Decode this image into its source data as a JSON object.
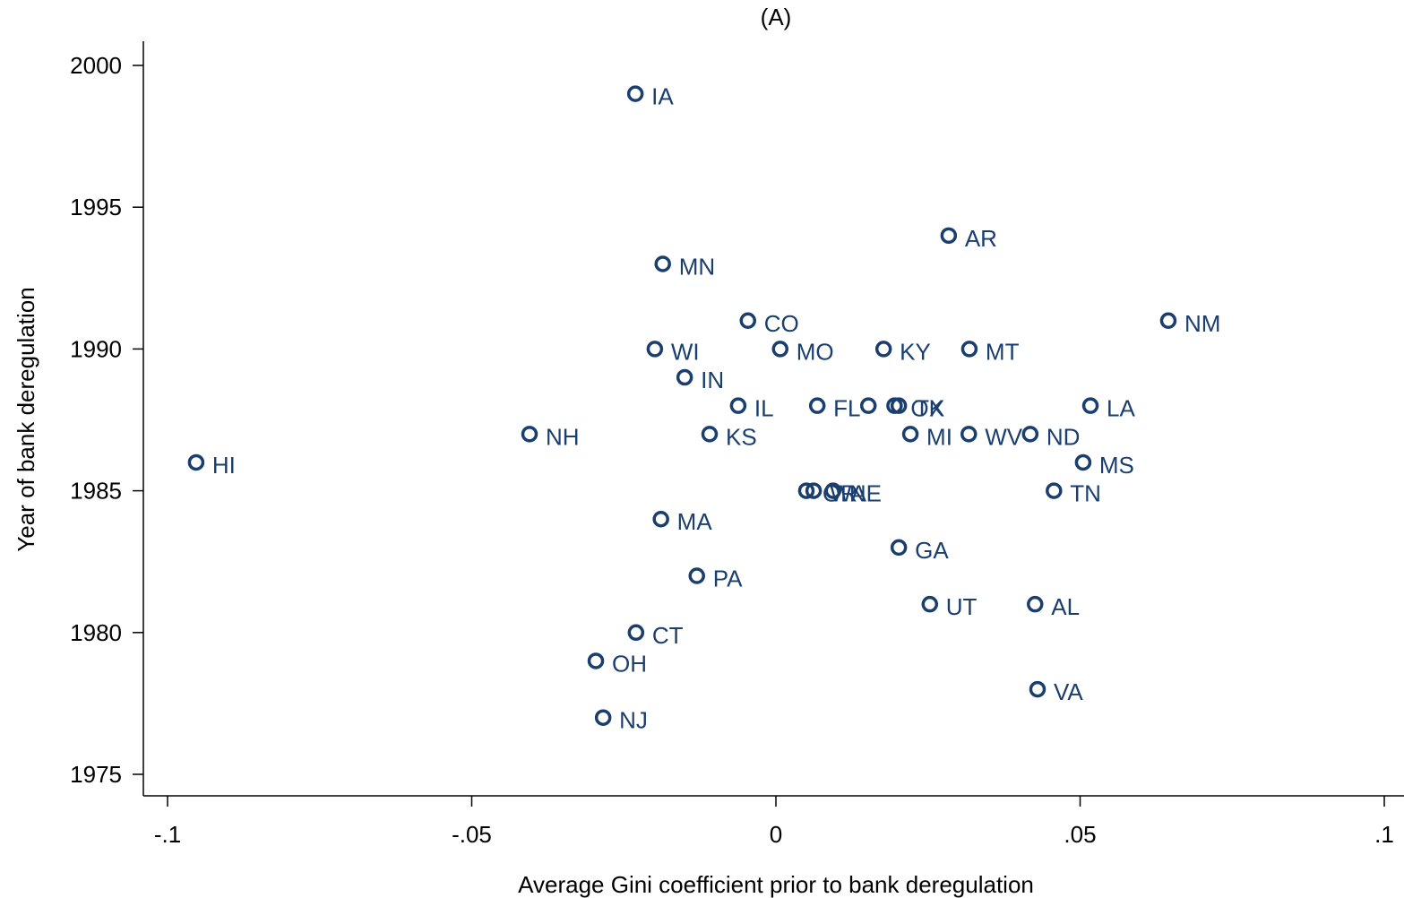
{
  "chart_data": {
    "type": "scatter",
    "title": "(A)",
    "x_label": "Average Gini coefficient prior to bank deregulation",
    "y_label": "Year of bank deregulation",
    "color": "#1a3e6e",
    "labels": [
      "IA",
      "AR",
      "MN",
      "CO",
      "NM",
      "WI",
      "MO",
      "KY",
      "MT",
      "IN",
      "IL",
      "FL",
      null,
      "OK",
      "TX",
      "LA",
      "NH",
      "KS",
      "MI",
      "WV",
      "ND",
      "HI",
      "MS",
      "OR",
      "WA",
      "NE",
      "TN",
      "MA",
      "GA",
      "PA",
      "UT",
      "AL",
      "CT",
      "OH",
      "VA",
      "NJ"
    ],
    "x": [
      -0.0231,
      0.0284,
      -0.0186,
      -0.0046,
      0.0645,
      -0.0199,
      0.0007,
      0.0177,
      0.0318,
      -0.015,
      -0.0062,
      0.0068,
      0.0152,
      0.0195,
      0.0202,
      0.0517,
      -0.0405,
      -0.0109,
      0.0221,
      0.0317,
      0.0418,
      -0.0953,
      0.0505,
      0.005,
      0.0062,
      0.0094,
      0.0457,
      -0.0189,
      0.0202,
      -0.013,
      0.0253,
      0.0426,
      -0.023,
      -0.0296,
      0.043,
      -0.0284
    ],
    "y": [
      1999,
      1994,
      1993,
      1991,
      1991,
      1990,
      1990,
      1990,
      1990,
      1989,
      1988,
      1988,
      1988,
      1988,
      1988,
      1988,
      1987,
      1987,
      1987,
      1987,
      1987,
      1986,
      1986,
      1985,
      1985,
      1985,
      1985,
      1984,
      1983,
      1982,
      1981,
      1981,
      1980,
      1979,
      1978,
      1977
    ],
    "xlim": [
      -0.1,
      0.1
    ],
    "xticks": [
      {
        "value": -0.1,
        "label": "-.1"
      },
      {
        "value": -0.05,
        "label": "-.05"
      },
      0,
      {
        "value": 0.05,
        "label": ".05"
      },
      {
        "value": 0.1,
        "label": ".1"
      }
    ],
    "ylim": [
      1975,
      2000
    ],
    "yticks": [
      1975,
      1980,
      1985,
      1990,
      1995,
      2000
    ]
  }
}
